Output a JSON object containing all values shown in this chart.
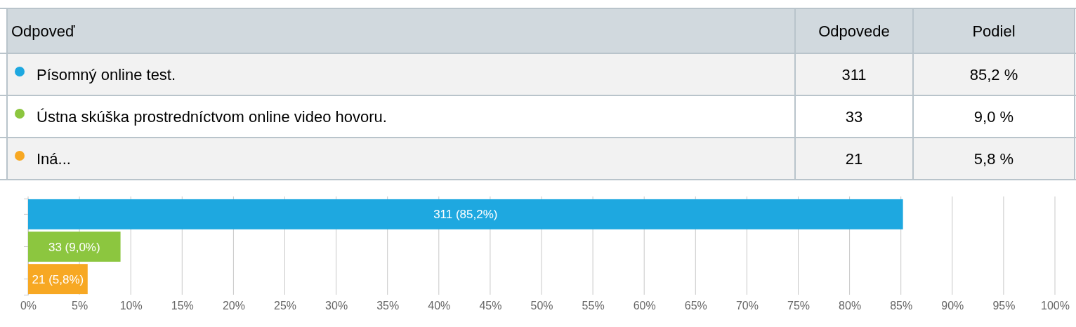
{
  "chart_data": {
    "type": "bar",
    "orientation": "horizontal",
    "categories": [
      null,
      null,
      null
    ],
    "values": [
      85.2,
      9.0,
      5.8
    ],
    "colors": [
      "#1ea8e0",
      "#8cc63f",
      "#f7a823"
    ],
    "value_labels": [
      "311 (85,2%)",
      "33 (9,0%)",
      "21 (5,8%)"
    ],
    "annotations": [
      "Odpoveď",
      "Odpovede",
      "Podiel",
      "Písomný online test.",
      "311",
      "85,2 %",
      "Ústna skúška prostredníctvom online video hovoru.",
      "33",
      "9,0 %",
      "Iná...",
      "21",
      "5,8 %"
    ],
    "xlim": [
      0,
      100
    ],
    "xticks": [
      {
        "value": 0,
        "label": "0%"
      },
      {
        "value": 5,
        "label": "5%"
      },
      {
        "value": 10,
        "label": "10%"
      },
      {
        "value": 15,
        "label": "15%"
      },
      {
        "value": 20,
        "label": "20%"
      },
      {
        "value": 25,
        "label": "25%"
      },
      {
        "value": 30,
        "label": "30%"
      },
      {
        "value": 35,
        "label": "35%"
      },
      {
        "value": 40,
        "label": "40%"
      },
      {
        "value": 45,
        "label": "45%"
      },
      {
        "value": 50,
        "label": "50%"
      },
      {
        "value": 55,
        "label": "55%"
      },
      {
        "value": 60,
        "label": "60%"
      },
      {
        "value": 65,
        "label": "65%"
      },
      {
        "value": 70,
        "label": "70%"
      },
      {
        "value": 75,
        "label": "75%"
      },
      {
        "value": 80,
        "label": "80%"
      },
      {
        "value": 85,
        "label": "85%"
      },
      {
        "value": 90,
        "label": "90%"
      },
      {
        "value": 95,
        "label": "95%"
      },
      {
        "value": 100,
        "label": "100%"
      }
    ],
    "grid": "x",
    "tick_labels": "x"
  }
}
